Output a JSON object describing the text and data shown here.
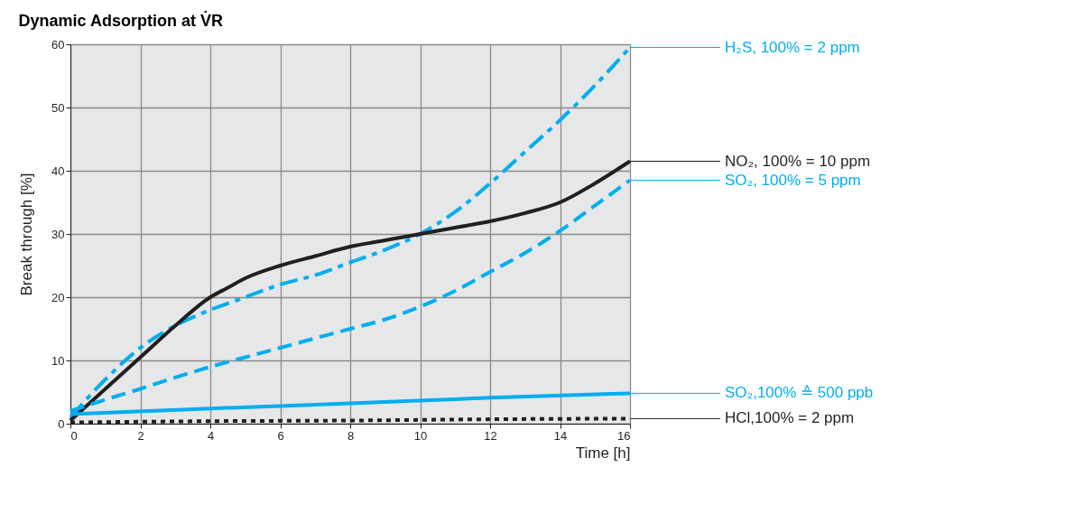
{
  "chart_data": {
    "type": "line",
    "title": "Dynamic Adsorption at V̇R",
    "xlabel": "Time [h]",
    "ylabel": "Break through [%]",
    "xlim": [
      0,
      16
    ],
    "xticks": [
      0,
      2,
      4,
      6,
      8,
      10,
      12,
      14,
      16
    ],
    "ylim": [
      0,
      60
    ],
    "yticks": [
      0,
      10,
      20,
      30,
      40,
      50,
      60
    ],
    "grid": true,
    "marker": "none",
    "series": [
      {
        "name": "H₂S, 100% = 2 ppm",
        "color": "#00aeef",
        "line_style": "dashdot",
        "x": [
          0,
          1,
          2,
          3,
          4,
          5,
          6,
          7,
          8,
          9,
          10,
          11,
          12,
          13,
          14,
          15,
          16
        ],
        "values": [
          1,
          7,
          12,
          15.5,
          18,
          20,
          22,
          23.5,
          25.5,
          27.5,
          30,
          33.5,
          38,
          43,
          48,
          53.5,
          59.5
        ]
      },
      {
        "name": "NO₂, 100% = 10 ppm",
        "color": "#231f20",
        "line_style": "solid",
        "x": [
          0,
          1,
          2,
          3,
          4,
          4.5,
          5,
          6,
          7,
          8,
          9,
          10,
          11,
          12,
          13,
          14,
          15,
          16
        ],
        "values": [
          0.5,
          5.5,
          10.5,
          15.5,
          20,
          21.5,
          23,
          25,
          26.5,
          28,
          29,
          30,
          31,
          32,
          33.3,
          35,
          38,
          41.5
        ]
      },
      {
        "name": "SO₂, 100% = 5 ppm",
        "color": "#00aeef",
        "line_style": "dashed",
        "x": [
          0,
          1,
          2,
          3,
          4,
          5,
          6,
          7,
          8,
          9,
          10,
          11,
          12,
          13,
          14,
          15,
          16
        ],
        "values": [
          2,
          3.8,
          5.5,
          7.3,
          9,
          10.5,
          12,
          13.5,
          15,
          16.5,
          18.5,
          21,
          24,
          27,
          30.5,
          34.5,
          38.5
        ]
      },
      {
        "name": "SO₂,100% ≙ 500 ppb",
        "color": "#00aeef",
        "line_style": "solid",
        "x": [
          0,
          4,
          8,
          12,
          16
        ],
        "values": [
          1.5,
          2.4,
          3.2,
          4.1,
          4.8
        ]
      },
      {
        "name": "HCl,100% = 2 ppm",
        "color": "#231f20",
        "line_style": "dotted",
        "x": [
          0,
          4,
          8,
          12,
          16
        ],
        "values": [
          0.2,
          0.4,
          0.5,
          0.7,
          0.8
        ]
      }
    ]
  }
}
